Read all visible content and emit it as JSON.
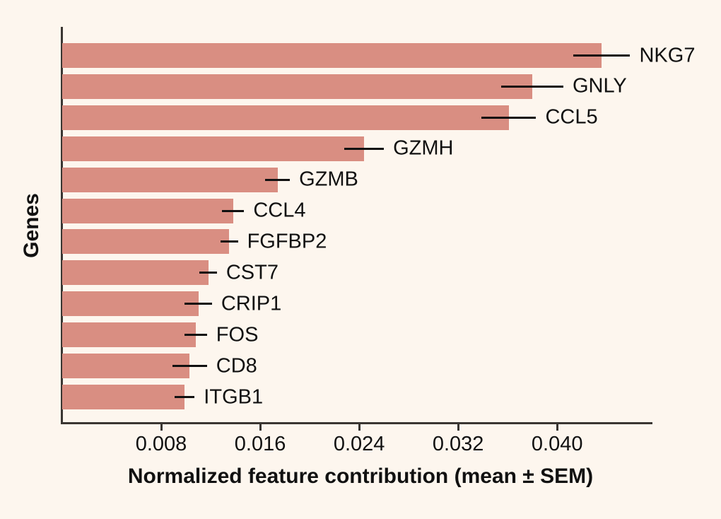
{
  "figure": {
    "background_color": "#fdf6ee",
    "bar_color": "#d98e82",
    "axis_color": "#3a3632",
    "error_bar_color": "#111111",
    "text_color": "#111111"
  },
  "chart_data": {
    "type": "bar",
    "orientation": "horizontal",
    "title": "",
    "xlabel": "Normalized feature contribution (mean ± SEM)",
    "ylabel": "Genes",
    "categories": [
      "NKG7",
      "GNLY",
      "CCL5",
      "GZMH",
      "GZMB",
      "CCL4",
      "FGFBP2",
      "CST7",
      "CRIP1",
      "FOS",
      "CD8",
      "ITGB1"
    ],
    "values": [
      0.0436,
      0.038,
      0.0361,
      0.0244,
      0.0174,
      0.0138,
      0.0135,
      0.0118,
      0.011,
      0.0108,
      0.0103,
      0.0099
    ],
    "sem": [
      0.0023,
      0.0025,
      0.0022,
      0.0016,
      0.001,
      0.0009,
      0.0007,
      0.0007,
      0.0011,
      0.0009,
      0.0014,
      0.0008
    ],
    "error_bar_style": "horizontal line, no caps",
    "xlim": [
      0,
      0.0477
    ],
    "xticks": [
      0.008,
      0.016,
      0.024,
      0.032,
      0.04
    ],
    "xtick_labels": [
      "0.008",
      "0.016",
      "0.024",
      "0.032",
      "0.040"
    ],
    "grid": false,
    "legend_position": "none",
    "bar_labels_position": "right of error bar"
  }
}
